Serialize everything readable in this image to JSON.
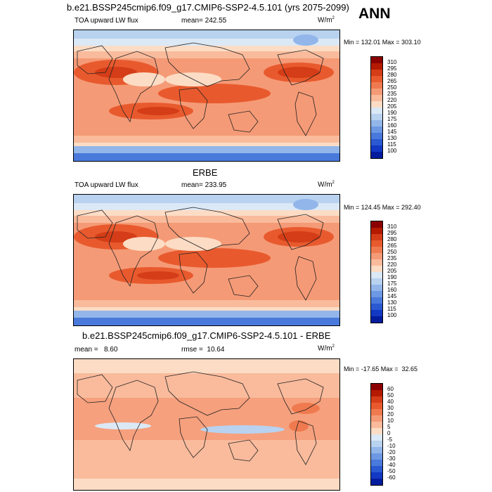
{
  "season": "ANN",
  "panels": [
    {
      "title": "b.e21.BSSP245cmip6.f09_g17.CMIP6-SSP2-4.5.101 (yrs 2075-2099)",
      "left_label": "TOA upward LW flux",
      "center_label": "mean= 242.55",
      "units": "W/m",
      "units_sup": "2",
      "minmax": "Min = 132.01 Max = 303.10",
      "levels": [
        "310",
        "295",
        "280",
        "265",
        "250",
        "235",
        "220",
        "205",
        "190",
        "175",
        "160",
        "145",
        "130",
        "115",
        "100"
      ],
      "colors": [
        "#8b0000",
        "#b51a00",
        "#d43d17",
        "#e85a2e",
        "#f07a4f",
        "#f59a76",
        "#f9bb9c",
        "#fcdcc5",
        "#dbe8f6",
        "#b8d2f0",
        "#92b6ea",
        "#6d98e3",
        "#4a79dc",
        "#2a59d2",
        "#1238c4",
        "#031c9e"
      ]
    },
    {
      "title": "ERBE",
      "left_label": "TOA upward LW flux",
      "center_label": "mean= 233.95",
      "units": "W/m",
      "units_sup": "2",
      "minmax": "Min = 124.45 Max = 292.40",
      "levels": [
        "310",
        "295",
        "280",
        "265",
        "250",
        "235",
        "220",
        "205",
        "190",
        "175",
        "160",
        "145",
        "130",
        "115",
        "100"
      ],
      "colors": [
        "#8b0000",
        "#b51a00",
        "#d43d17",
        "#e85a2e",
        "#f07a4f",
        "#f59a76",
        "#f9bb9c",
        "#fcdcc5",
        "#dbe8f6",
        "#b8d2f0",
        "#92b6ea",
        "#6d98e3",
        "#4a79dc",
        "#2a59d2",
        "#1238c4",
        "#031c9e"
      ]
    },
    {
      "title": "b.e21.BSSP245cmip6.f09_g17.CMIP6-SSP2-4.5.101 - ERBE",
      "left_label": "mean =   8.60",
      "center_label": "rmse =  10.64",
      "units": "W/m",
      "units_sup": "2",
      "minmax": "Min = -17.65 Max =  32.65",
      "levels": [
        "60",
        "50",
        "40",
        "30",
        "20",
        "10",
        "5",
        "0",
        "-5",
        "-10",
        "-20",
        "-30",
        "-40",
        "-50",
        "-60"
      ],
      "colors": [
        "#8b0000",
        "#b51a00",
        "#d43d17",
        "#e85a2e",
        "#f07a4f",
        "#f59a76",
        "#f9bb9c",
        "#fcdcc5",
        "#dbe8f6",
        "#b8d2f0",
        "#92b6ea",
        "#6d98e3",
        "#4a79dc",
        "#2a59d2",
        "#1238c4",
        "#031c9e"
      ]
    }
  ]
}
